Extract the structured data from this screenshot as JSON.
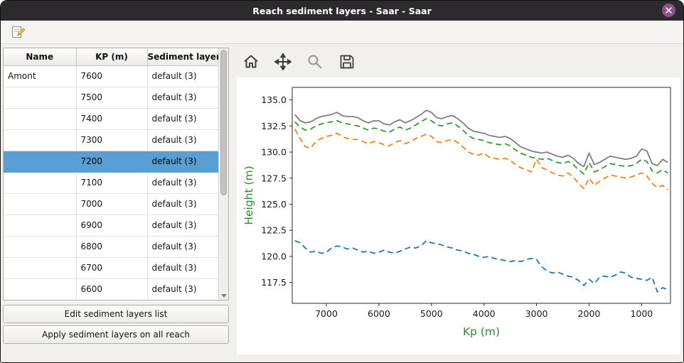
{
  "window": {
    "title": "Reach sediment layers - Saar - Saar"
  },
  "icons": {
    "titlebar_close": "close-icon",
    "toolbar_edit": "edit-note-icon",
    "plot_toolbar": [
      "home-icon",
      "pan-icon",
      "zoom-icon",
      "save-icon"
    ]
  },
  "table": {
    "headers": [
      "Name",
      "KP (m)",
      "Sediment layers"
    ],
    "rows": [
      {
        "name": "Amont",
        "kp": "7600",
        "layers": "default (3)",
        "selected": false
      },
      {
        "name": "",
        "kp": "7500",
        "layers": "default (3)",
        "selected": false
      },
      {
        "name": "",
        "kp": "7400",
        "layers": "default (3)",
        "selected": false
      },
      {
        "name": "",
        "kp": "7300",
        "layers": "default (3)",
        "selected": false
      },
      {
        "name": "",
        "kp": "7200",
        "layers": "default (3)",
        "selected": true
      },
      {
        "name": "",
        "kp": "7100",
        "layers": "default (3)",
        "selected": false
      },
      {
        "name": "",
        "kp": "7000",
        "layers": "default (3)",
        "selected": false
      },
      {
        "name": "",
        "kp": "6900",
        "layers": "default (3)",
        "selected": false
      },
      {
        "name": "",
        "kp": "6800",
        "layers": "default (3)",
        "selected": false
      },
      {
        "name": "",
        "kp": "6700",
        "layers": "default (3)",
        "selected": false
      },
      {
        "name": "",
        "kp": "6600",
        "layers": "default (3)",
        "selected": false
      }
    ]
  },
  "buttons": {
    "edit_label": "Edit sediment layers list",
    "apply_label": "Apply sediment layers on all reach"
  },
  "chart_data": {
    "type": "line",
    "title": "",
    "xlabel": "Kp (m)",
    "ylabel": "Height (m)",
    "axis_label_color": "#2e8b2e",
    "x_reversed": true,
    "xlim": [
      7650,
      450
    ],
    "ylim": [
      115.5,
      136.2
    ],
    "x_ticks": [
      7000,
      6000,
      5000,
      4000,
      3000,
      2000,
      1000
    ],
    "y_ticks": [
      117.5,
      120.0,
      122.5,
      125.0,
      127.5,
      130.0,
      132.5,
      135.0
    ],
    "grid": false,
    "legend": "none",
    "x": [
      7600,
      7500,
      7400,
      7300,
      7200,
      7100,
      7000,
      6900,
      6800,
      6700,
      6600,
      6500,
      6400,
      6300,
      6200,
      6100,
      6000,
      5900,
      5800,
      5700,
      5600,
      5500,
      5400,
      5300,
      5200,
      5100,
      5000,
      4900,
      4800,
      4700,
      4600,
      4500,
      4400,
      4300,
      4200,
      4100,
      4000,
      3900,
      3800,
      3700,
      3600,
      3500,
      3400,
      3300,
      3200,
      3100,
      3000,
      2900,
      2800,
      2700,
      2600,
      2500,
      2400,
      2300,
      2200,
      2100,
      2000,
      1900,
      1800,
      1700,
      1600,
      1500,
      1400,
      1300,
      1200,
      1100,
      1000,
      900,
      800,
      700,
      600,
      500
    ],
    "series": [
      {
        "name": "gray-solid",
        "color": "#7f7f7f",
        "style": "solid",
        "values": [
          133.6,
          133.0,
          132.8,
          132.9,
          133.2,
          133.4,
          133.5,
          133.6,
          133.8,
          133.5,
          133.4,
          133.4,
          133.3,
          133.0,
          132.8,
          133.0,
          133.0,
          132.7,
          132.6,
          132.9,
          133.1,
          132.8,
          133.0,
          133.3,
          133.6,
          134.0,
          133.8,
          133.3,
          133.2,
          133.4,
          133.5,
          133.2,
          132.8,
          132.3,
          132.0,
          131.9,
          131.8,
          131.6,
          131.5,
          131.4,
          131.5,
          131.3,
          130.9,
          130.5,
          130.3,
          130.1,
          130.0,
          129.9,
          130.0,
          129.8,
          129.6,
          129.5,
          129.7,
          129.4,
          128.9,
          128.6,
          129.9,
          128.8,
          129.0,
          129.3,
          129.6,
          129.5,
          129.4,
          129.3,
          129.4,
          129.6,
          130.3,
          130.1,
          128.9,
          128.7,
          129.3,
          129.0
        ]
      },
      {
        "name": "green-dashed",
        "color": "#2ca02c",
        "style": "dashed",
        "values": [
          132.9,
          132.4,
          132.1,
          132.2,
          132.5,
          132.7,
          132.8,
          132.9,
          133.0,
          132.8,
          132.7,
          132.6,
          132.5,
          132.3,
          132.1,
          132.3,
          132.2,
          132.0,
          131.9,
          132.2,
          132.4,
          132.1,
          132.3,
          132.6,
          132.9,
          133.2,
          133.0,
          132.6,
          132.5,
          132.7,
          132.8,
          132.5,
          132.1,
          131.6,
          131.3,
          131.2,
          131.1,
          130.9,
          130.8,
          130.7,
          130.8,
          130.6,
          130.2,
          129.9,
          129.7,
          129.5,
          129.4,
          129.3,
          129.4,
          129.2,
          129.0,
          128.9,
          129.1,
          128.8,
          128.3,
          127.9,
          129.0,
          128.1,
          128.3,
          128.6,
          128.9,
          128.8,
          128.7,
          128.6,
          128.7,
          128.9,
          129.3,
          129.1,
          128.2,
          128.0,
          128.3,
          128.0
        ]
      },
      {
        "name": "orange-dashed",
        "color": "#ff7f0e",
        "style": "dashed",
        "values": [
          132.2,
          131.3,
          130.5,
          130.4,
          131.0,
          131.3,
          131.5,
          131.6,
          131.8,
          131.5,
          131.3,
          131.2,
          131.2,
          131.0,
          130.8,
          131.0,
          130.9,
          130.7,
          130.6,
          130.9,
          131.1,
          130.8,
          131.0,
          131.3,
          131.5,
          131.7,
          131.5,
          131.0,
          130.9,
          131.1,
          131.2,
          130.9,
          130.5,
          130.0,
          129.8,
          129.7,
          129.9,
          129.5,
          129.4,
          129.3,
          129.4,
          129.2,
          128.8,
          128.5,
          128.3,
          128.1,
          129.3,
          128.5,
          128.3,
          128.0,
          127.8,
          127.7,
          128.0,
          127.6,
          127.0,
          126.5,
          127.5,
          126.8,
          127.2,
          127.5,
          127.8,
          127.7,
          127.6,
          127.5,
          127.6,
          127.8,
          128.0,
          127.7,
          127.0,
          126.6,
          126.8,
          126.4
        ]
      },
      {
        "name": "blue-dashed",
        "color": "#1f77b4",
        "style": "dashed",
        "values": [
          121.5,
          121.3,
          120.8,
          120.4,
          120.5,
          120.3,
          120.4,
          120.8,
          121.0,
          120.9,
          120.7,
          120.8,
          120.6,
          120.4,
          120.5,
          120.3,
          120.4,
          120.6,
          120.4,
          120.3,
          120.5,
          120.7,
          120.9,
          120.8,
          121.0,
          121.5,
          121.3,
          121.2,
          121.1,
          120.9,
          120.8,
          120.6,
          120.5,
          120.3,
          120.2,
          120.0,
          119.9,
          120.0,
          119.8,
          119.7,
          119.6,
          119.5,
          119.6,
          119.5,
          119.7,
          119.8,
          119.7,
          119.0,
          118.6,
          118.4,
          118.5,
          118.3,
          118.1,
          118.0,
          117.7,
          117.2,
          117.8,
          117.4,
          118.0,
          118.1,
          118.0,
          118.2,
          118.5,
          118.4,
          118.0,
          117.9,
          117.8,
          117.7,
          118.0,
          116.6,
          117.0,
          116.8
        ]
      }
    ]
  }
}
